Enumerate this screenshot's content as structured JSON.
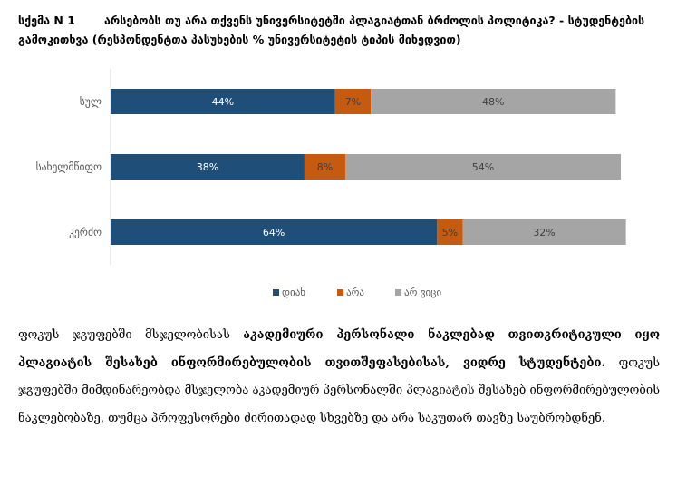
{
  "heading": {
    "label": "სქემა N 1",
    "title": "არსებობს თუ არა თქვენს უნივერსიტეტში პლაგიატთან ბრძოლის პოლიტიკა? - სტუდენტების გამოკითხვა (რესპონდენტთა პასუხების % უნივერსიტეტის ტიპის მიხედვით)"
  },
  "chart_data": {
    "type": "bar",
    "orientation": "horizontal",
    "stacked": true,
    "categories": [
      "სულ",
      "სახელმწიფო",
      "კერძო"
    ],
    "series": [
      {
        "name": "დიახ",
        "color": "#1f4e79",
        "values": [
          44,
          38,
          64
        ],
        "labels": [
          "44%",
          "38%",
          "64%"
        ]
      },
      {
        "name": "არა",
        "color": "#c55a11",
        "values": [
          7,
          8,
          5
        ],
        "labels": [
          "7%",
          "8%",
          "5%"
        ]
      },
      {
        "name": "არ ვიცი",
        "color": "#a5a5a5",
        "values": [
          48,
          54,
          32
        ],
        "labels": [
          "48%",
          "54%",
          "32%"
        ]
      }
    ],
    "xlim": [
      0,
      100
    ],
    "legend_position": "bottom"
  },
  "body": {
    "p1": "ფოკუს ჯგუფებში მსჯელობისას ",
    "bold1": "აკადემიური პერსონალი ნაკლებად თვითკრიტიკული იყო პლაგიატის შესახებ ინფორმირებულობის თვითშეფასებისას, ვიდრე სტუდენტები.",
    "p2": " ფოკუს ჯგუფებში მიმდინარეობდა მსჯელობა აკადემიურ პერსონალში პლაგიატის შესახებ ინფორმირებულობის ნაკლებობაზე, თუმცა პროფესორები ძირითადად სხვებზე და არა საკუთარ თავზე საუბრობდნენ."
  }
}
